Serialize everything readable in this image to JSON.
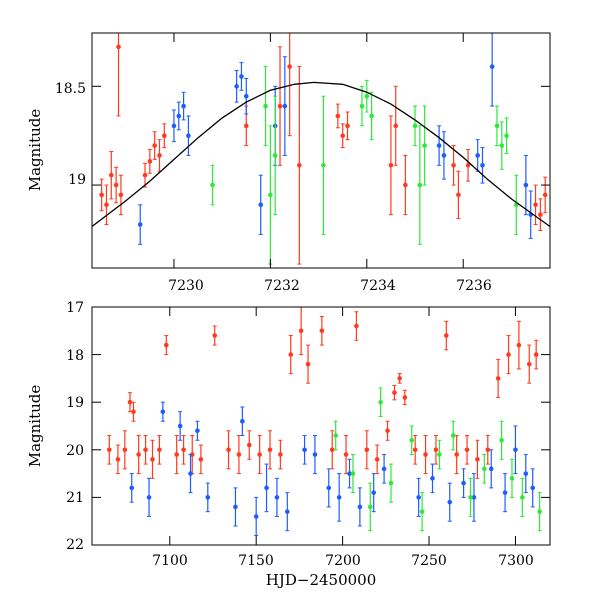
{
  "chart_data": [
    {
      "type": "scatter",
      "panel": "top",
      "title": "",
      "xlabel": "",
      "ylabel": "Magnitude",
      "xlim": [
        7228.3,
        7237.8
      ],
      "ylim": [
        19.42,
        18.23
      ],
      "y_inverted": true,
      "xticks": [
        7230,
        7232,
        7234,
        7236
      ],
      "yticks": [
        18.5,
        19
      ],
      "xtick_labels": [
        "7230",
        "7232",
        "7234",
        "7236"
      ],
      "ytick_labels": [
        "18.5",
        "19"
      ],
      "model_curve": {
        "label": "sinusoidal fit",
        "x": [
          7228.3,
          7229.0,
          7229.5,
          7230.0,
          7230.5,
          7231.0,
          7231.5,
          7232.0,
          7232.5,
          7232.9,
          7233.5,
          7234.0,
          7234.5,
          7235.0,
          7235.5,
          7236.0,
          7236.5,
          7237.0,
          7237.8
        ],
        "y": [
          19.21,
          19.08,
          18.98,
          18.87,
          18.76,
          18.66,
          18.58,
          18.52,
          18.49,
          18.48,
          18.49,
          18.53,
          18.59,
          18.67,
          18.76,
          18.86,
          18.97,
          19.07,
          19.21
        ]
      },
      "series": [
        {
          "name": "red",
          "color": "#ff3a1f",
          "points": [
            [
              7228.5,
              19.05,
              0.08
            ],
            [
              7228.6,
              19.1,
              0.1
            ],
            [
              7228.7,
              18.95,
              0.12
            ],
            [
              7228.8,
              19.0,
              0.09
            ],
            [
              7228.85,
              18.3,
              0.35
            ],
            [
              7228.9,
              19.05,
              0.1
            ],
            [
              7229.4,
              18.95,
              0.06
            ],
            [
              7229.5,
              18.88,
              0.06
            ],
            [
              7229.6,
              18.8,
              0.07
            ],
            [
              7229.7,
              18.85,
              0.08
            ],
            [
              7229.8,
              18.75,
              0.06
            ],
            [
              7231.5,
              18.7,
              0.1
            ],
            [
              7232.2,
              18.6,
              0.3
            ],
            [
              7232.4,
              18.4,
              0.35
            ],
            [
              7232.6,
              18.9,
              0.5
            ],
            [
              7233.4,
              18.65,
              0.06
            ],
            [
              7233.5,
              18.75,
              0.06
            ],
            [
              7233.6,
              18.7,
              0.07
            ],
            [
              7234.5,
              18.9,
              0.25
            ],
            [
              7234.6,
              18.7,
              0.2
            ],
            [
              7234.8,
              19.0,
              0.15
            ],
            [
              7235.8,
              18.9,
              0.1
            ],
            [
              7235.9,
              19.05,
              0.12
            ],
            [
              7236.1,
              18.9,
              0.08
            ],
            [
              7237.5,
              19.1,
              0.1
            ],
            [
              7237.6,
              19.15,
              0.08
            ],
            [
              7237.7,
              19.05,
              0.09
            ]
          ]
        },
        {
          "name": "blue",
          "color": "#1f5cff",
          "points": [
            [
              7229.3,
              19.2,
              0.1
            ],
            [
              7230.0,
              18.7,
              0.08
            ],
            [
              7230.1,
              18.65,
              0.07
            ],
            [
              7230.2,
              18.6,
              0.07
            ],
            [
              7230.3,
              18.75,
              0.1
            ],
            [
              7231.3,
              18.5,
              0.08
            ],
            [
              7231.4,
              18.45,
              0.07
            ],
            [
              7231.5,
              18.55,
              0.09
            ],
            [
              7231.8,
              19.1,
              0.15
            ],
            [
              7232.1,
              18.7,
              0.2
            ],
            [
              7232.3,
              18.6,
              0.25
            ],
            [
              7235.5,
              18.8,
              0.1
            ],
            [
              7235.6,
              18.85,
              0.12
            ],
            [
              7236.3,
              18.85,
              0.08
            ],
            [
              7236.4,
              18.9,
              0.09
            ],
            [
              7236.6,
              18.4,
              0.2
            ],
            [
              7237.3,
              19.0,
              0.15
            ],
            [
              7237.4,
              19.15,
              0.12
            ]
          ]
        },
        {
          "name": "green",
          "color": "#2ee83a",
          "points": [
            [
              7230.8,
              19.0,
              0.1
            ],
            [
              7231.9,
              18.6,
              0.2
            ],
            [
              7232.0,
              19.05,
              0.35
            ],
            [
              7232.1,
              18.85,
              0.3
            ],
            [
              7233.1,
              18.9,
              0.35
            ],
            [
              7233.9,
              18.6,
              0.1
            ],
            [
              7234.0,
              18.55,
              0.08
            ],
            [
              7234.1,
              18.65,
              0.12
            ],
            [
              7235.0,
              18.7,
              0.1
            ],
            [
              7235.1,
              19.0,
              0.3
            ],
            [
              7235.2,
              18.8,
              0.2
            ],
            [
              7236.7,
              18.7,
              0.1
            ],
            [
              7236.8,
              18.8,
              0.12
            ],
            [
              7236.9,
              18.75,
              0.09
            ],
            [
              7237.1,
              19.1,
              0.15
            ]
          ]
        }
      ]
    },
    {
      "type": "scatter",
      "panel": "bottom",
      "title": "",
      "xlabel": "HJD−2450000",
      "ylabel": "Magnitude",
      "xlim": [
        7055,
        7320
      ],
      "ylim": [
        22,
        17
      ],
      "y_inverted": true,
      "xticks": [
        7100,
        7150,
        7200,
        7250,
        7300
      ],
      "yticks": [
        17,
        18,
        19,
        20,
        21,
        22
      ],
      "xtick_labels": [
        "7100",
        "7150",
        "7200",
        "7250",
        "7300"
      ],
      "ytick_labels": [
        "17",
        "18",
        "19",
        "20",
        "21",
        "22"
      ],
      "series": [
        {
          "name": "red",
          "color": "#ff3a1f",
          "points": [
            [
              7065,
              20.0,
              0.3
            ],
            [
              7070,
              20.2,
              0.3
            ],
            [
              7074,
              20.0,
              0.4
            ],
            [
              7077,
              19.0,
              0.2
            ],
            [
              7079,
              19.2,
              0.2
            ],
            [
              7082,
              20.1,
              0.4
            ],
            [
              7086,
              20.0,
              0.3
            ],
            [
              7090,
              20.2,
              0.4
            ],
            [
              7094,
              20.0,
              0.3
            ],
            [
              7098,
              17.8,
              0.2
            ],
            [
              7104,
              20.1,
              0.4
            ],
            [
              7108,
              20.0,
              0.3
            ],
            [
              7113,
              20.1,
              0.4
            ],
            [
              7118,
              20.2,
              0.3
            ],
            [
              7126,
              17.6,
              0.2
            ],
            [
              7134,
              20.0,
              0.4
            ],
            [
              7140,
              20.1,
              0.4
            ],
            [
              7146,
              19.9,
              0.3
            ],
            [
              7152,
              20.1,
              0.4
            ],
            [
              7158,
              20.0,
              0.4
            ],
            [
              7164,
              20.1,
              0.3
            ],
            [
              7170,
              18.0,
              0.4
            ],
            [
              7176,
              17.5,
              0.5
            ],
            [
              7180,
              18.2,
              0.4
            ],
            [
              7188,
              17.5,
              0.3
            ],
            [
              7194,
              20.0,
              0.4
            ],
            [
              7202,
              20.1,
              0.4
            ],
            [
              7208,
              17.4,
              0.3
            ],
            [
              7214,
              20.0,
              0.4
            ],
            [
              7220,
              20.2,
              0.3
            ],
            [
              7226,
              19.6,
              0.2
            ],
            [
              7230,
              18.8,
              0.15
            ],
            [
              7233,
              18.5,
              0.1
            ],
            [
              7236,
              18.9,
              0.15
            ],
            [
              7242,
              20.0,
              0.3
            ],
            [
              7248,
              20.1,
              0.4
            ],
            [
              7254,
              20.0,
              0.3
            ],
            [
              7260,
              17.6,
              0.3
            ],
            [
              7266,
              20.1,
              0.4
            ],
            [
              7272,
              20.0,
              0.3
            ],
            [
              7278,
              20.2,
              0.4
            ],
            [
              7284,
              20.0,
              0.3
            ],
            [
              7290,
              18.5,
              0.4
            ],
            [
              7296,
              18.0,
              0.4
            ],
            [
              7302,
              17.8,
              0.5
            ],
            [
              7308,
              18.2,
              0.4
            ],
            [
              7312,
              18.0,
              0.3
            ]
          ]
        },
        {
          "name": "blue",
          "color": "#1f5cff",
          "points": [
            [
              7078,
              20.8,
              0.3
            ],
            [
              7088,
              21.0,
              0.4
            ],
            [
              7096,
              19.2,
              0.2
            ],
            [
              7106,
              19.5,
              0.3
            ],
            [
              7112,
              20.5,
              0.4
            ],
            [
              7116,
              19.6,
              0.2
            ],
            [
              7122,
              21.0,
              0.3
            ],
            [
              7138,
              21.2,
              0.4
            ],
            [
              7142,
              19.4,
              0.3
            ],
            [
              7150,
              21.4,
              0.4
            ],
            [
              7156,
              20.8,
              0.5
            ],
            [
              7162,
              21.0,
              0.4
            ],
            [
              7168,
              21.3,
              0.4
            ],
            [
              7178,
              20.0,
              0.3
            ],
            [
              7184,
              20.1,
              0.4
            ],
            [
              7192,
              20.8,
              0.4
            ],
            [
              7198,
              21.0,
              0.5
            ],
            [
              7204,
              20.5,
              0.3
            ],
            [
              7210,
              21.2,
              0.4
            ],
            [
              7218,
              20.9,
              0.4
            ],
            [
              7224,
              20.4,
              0.3
            ],
            [
              7244,
              21.0,
              0.4
            ],
            [
              7252,
              20.6,
              0.3
            ],
            [
              7262,
              21.1,
              0.4
            ],
            [
              7270,
              20.7,
              0.3
            ],
            [
              7276,
              21.0,
              0.5
            ],
            [
              7286,
              20.4,
              0.4
            ],
            [
              7294,
              20.9,
              0.4
            ],
            [
              7300,
              20.0,
              0.5
            ],
            [
              7306,
              20.5,
              0.4
            ],
            [
              7310,
              20.8,
              0.4
            ]
          ]
        },
        {
          "name": "green",
          "color": "#2ee83a",
          "points": [
            [
              7196,
              19.7,
              0.3
            ],
            [
              7206,
              20.5,
              0.4
            ],
            [
              7216,
              21.2,
              0.5
            ],
            [
              7222,
              19.0,
              0.3
            ],
            [
              7228,
              20.7,
              0.4
            ],
            [
              7240,
              19.8,
              0.3
            ],
            [
              7246,
              21.3,
              0.4
            ],
            [
              7256,
              20.1,
              0.3
            ],
            [
              7264,
              19.7,
              0.3
            ],
            [
              7274,
              21.0,
              0.4
            ],
            [
              7282,
              20.4,
              0.3
            ],
            [
              7292,
              19.8,
              0.4
            ],
            [
              7298,
              20.6,
              0.4
            ],
            [
              7304,
              21.0,
              0.4
            ],
            [
              7314,
              21.3,
              0.4
            ]
          ]
        }
      ]
    }
  ]
}
